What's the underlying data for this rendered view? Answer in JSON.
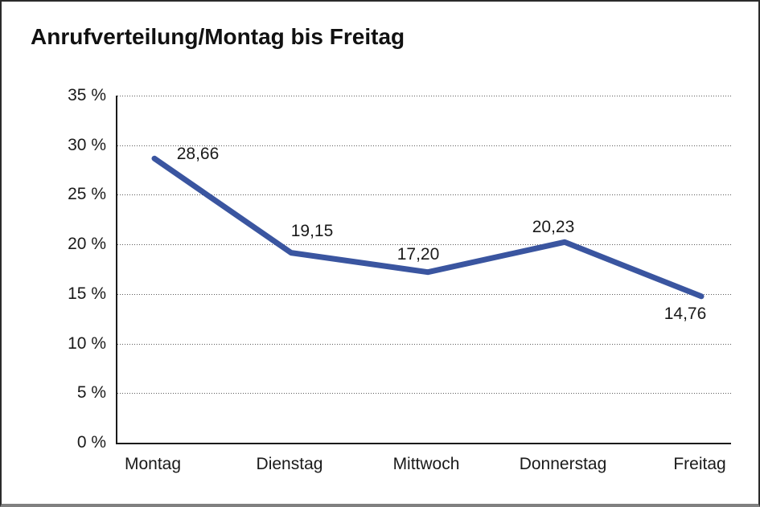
{
  "window": {
    "title": "Anrufverteilung/Montag bis Freitag"
  },
  "chart_data": {
    "type": "line",
    "title": "Anrufverteilung/Montag bis Freitag",
    "categories": [
      "Montag",
      "Dienstag",
      "Mittwoch",
      "Donnerstag",
      "Freitag"
    ],
    "values": [
      28.66,
      19.15,
      17.2,
      20.23,
      14.76
    ],
    "point_labels": [
      "28,66",
      "19,15",
      "17,20",
      "20,23",
      "14,76"
    ],
    "xlabel": "",
    "ylabel": "",
    "ylim": [
      0,
      35
    ],
    "ytick_step": 5,
    "yticks": [
      0,
      5,
      10,
      15,
      20,
      25,
      30,
      35
    ],
    "ytick_labels": [
      "0 %",
      "5 %",
      "10 %",
      "15 %",
      "20 %",
      "25 %",
      "30 %",
      "35 %"
    ],
    "grid": "horizontal-dotted",
    "legend": "none",
    "colors": {
      "line": "#3A55A0",
      "text": "#1a1a1a",
      "axis": "#1a1a1a",
      "grid": "#5a5a5a",
      "frame_bottom": "#808080"
    }
  }
}
